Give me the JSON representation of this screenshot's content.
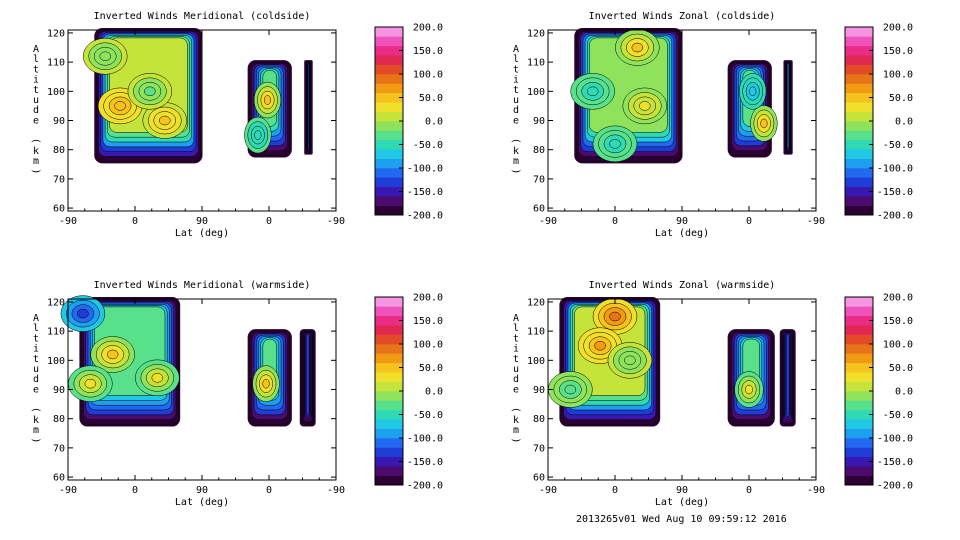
{
  "footer": "2013265v01 Wed Aug 10 09:59:12 2016",
  "palette": [
    "#2b0033",
    "#4b0a6e",
    "#3a17b0",
    "#1f3dd6",
    "#2169ee",
    "#1ea0f0",
    "#20c8e6",
    "#2fd9b4",
    "#59e08a",
    "#8fe35c",
    "#c6e33c",
    "#f0e02c",
    "#f5c21e",
    "#f29a14",
    "#e8741a",
    "#e24a28",
    "#e02850",
    "#ea2c86",
    "#f052bc",
    "#f594e0"
  ],
  "chart_data": [
    {
      "type": "contour",
      "title": "Inverted Winds Meridional (coldside)",
      "xlabel": "Lat (deg)",
      "ylabel": "Altitude (km)",
      "x_ticks": [
        "-90",
        "0",
        "90",
        "0",
        "-90"
      ],
      "y_ticks": [
        60,
        70,
        80,
        90,
        100,
        110,
        120
      ],
      "ylim": [
        59,
        121
      ],
      "colorbar": {
        "range": [
          -200,
          200
        ],
        "ticks": [
          "200.0",
          "150.0",
          "100.0",
          "50.0",
          "0.0",
          "-50.0",
          "-100.0",
          "-150.0",
          "-200.0"
        ]
      },
      "regions": [
        {
          "xlim": [
            -52,
            88
          ],
          "ylim": [
            76,
            121
          ],
          "dominant_value": 10,
          "highs": [
            [
              -20,
              95,
              50
            ],
            [
              40,
              90,
              40
            ]
          ],
          "lows": [
            [
              20,
              100,
              -30
            ],
            [
              -40,
              112,
              -20
            ]
          ]
        },
        {
          "xlim": [
            154,
            208
          ],
          "ylim": [
            78,
            110
          ],
          "dominant_value": -30,
          "highs": [
            [
              178,
              97,
              45
            ]
          ],
          "lows": [
            [
              165,
              85,
              -60
            ]
          ]
        },
        {
          "xlim": [
            230,
            236
          ],
          "ylim": [
            79,
            110
          ],
          "dominant_value": -130,
          "highs": [],
          "lows": []
        }
      ]
    },
    {
      "type": "contour",
      "title": "Inverted Winds Zonal (coldside)",
      "xlabel": "Lat (deg)",
      "ylabel": "Altitude (km)",
      "x_ticks": [
        "-90",
        "0",
        "90",
        "0",
        "-90"
      ],
      "y_ticks": [
        60,
        70,
        80,
        90,
        100,
        110,
        120
      ],
      "ylim": [
        59,
        121
      ],
      "colorbar": {
        "range": [
          -200,
          200
        ],
        "ticks": [
          "200.0",
          "150.0",
          "100.0",
          "50.0",
          "0.0",
          "-50.0",
          "-100.0",
          "-150.0",
          "-200.0"
        ]
      },
      "regions": [
        {
          "xlim": [
            -52,
            88
          ],
          "ylim": [
            76,
            121
          ],
          "dominant_value": -20,
          "highs": [
            [
              30,
              115,
              45
            ],
            [
              40,
              95,
              30
            ]
          ],
          "lows": [
            [
              -30,
              100,
              -50
            ],
            [
              0,
              82,
              -60
            ]
          ]
        },
        {
          "xlim": [
            154,
            208
          ],
          "ylim": [
            78,
            110
          ],
          "dominant_value": -40,
          "highs": [
            [
              200,
              89,
              50
            ]
          ],
          "lows": [
            [
              185,
              100,
              -80
            ]
          ]
        },
        {
          "xlim": [
            229,
            236
          ],
          "ylim": [
            79,
            110
          ],
          "dominant_value": -100,
          "highs": [],
          "lows": []
        }
      ]
    },
    {
      "type": "contour",
      "title": "Inverted Winds Meridional (warmside)",
      "xlabel": "Lat (deg)",
      "ylabel": "Altitude (km)",
      "x_ticks": [
        "-90",
        "0",
        "90",
        "0",
        "-90"
      ],
      "y_ticks": [
        60,
        70,
        80,
        90,
        100,
        110,
        120
      ],
      "ylim": [
        59,
        121
      ],
      "colorbar": {
        "range": [
          -200,
          200
        ],
        "ticks": [
          "200.0",
          "150.0",
          "100.0",
          "50.0",
          "0.0",
          "-50.0",
          "-100.0",
          "-150.0",
          "-200.0"
        ]
      },
      "regions": [
        {
          "xlim": [
            -72,
            58
          ],
          "ylim": [
            78,
            121
          ],
          "dominant_value": -40,
          "highs": [
            [
              -30,
              102,
              40
            ],
            [
              30,
              94,
              30
            ],
            [
              -60,
              92,
              30
            ]
          ],
          "lows": [
            [
              -70,
              116,
              -140
            ]
          ]
        },
        {
          "xlim": [
            154,
            208
          ],
          "ylim": [
            78,
            110
          ],
          "dominant_value": -40,
          "highs": [
            [
              176,
              92,
              40
            ]
          ],
          "lows": []
        },
        {
          "xlim": [
            224,
            240
          ],
          "ylim": [
            78,
            110
          ],
          "dominant_value": -140,
          "highs": [],
          "lows": []
        }
      ]
    },
    {
      "type": "contour",
      "title": "Inverted Winds Zonal (warmside)",
      "xlabel": "Lat (deg)",
      "ylabel": "Altitude (km)",
      "x_ticks": [
        "-90",
        "0",
        "90",
        "0",
        "-90"
      ],
      "y_ticks": [
        60,
        70,
        80,
        90,
        100,
        110,
        120
      ],
      "ylim": [
        59,
        121
      ],
      "colorbar": {
        "range": [
          -200,
          200
        ],
        "ticks": [
          "200.0",
          "150.0",
          "100.0",
          "50.0",
          "0.0",
          "-50.0",
          "-100.0",
          "-150.0",
          "-200.0"
        ]
      },
      "regions": [
        {
          "xlim": [
            -72,
            58
          ],
          "ylim": [
            78,
            121
          ],
          "dominant_value": 10,
          "highs": [
            [
              0,
              115,
              90
            ],
            [
              -20,
              105,
              60
            ]
          ],
          "lows": [
            [
              -60,
              90,
              -40
            ],
            [
              20,
              100,
              -20
            ]
          ]
        },
        {
          "xlim": [
            154,
            212
          ],
          "ylim": [
            78,
            110
          ],
          "dominant_value": -40,
          "highs": [
            [
              180,
              90,
              30
            ]
          ],
          "lows": []
        },
        {
          "xlim": [
            224,
            240
          ],
          "ylim": [
            78,
            110
          ],
          "dominant_value": -130,
          "highs": [],
          "lows": []
        }
      ]
    }
  ]
}
